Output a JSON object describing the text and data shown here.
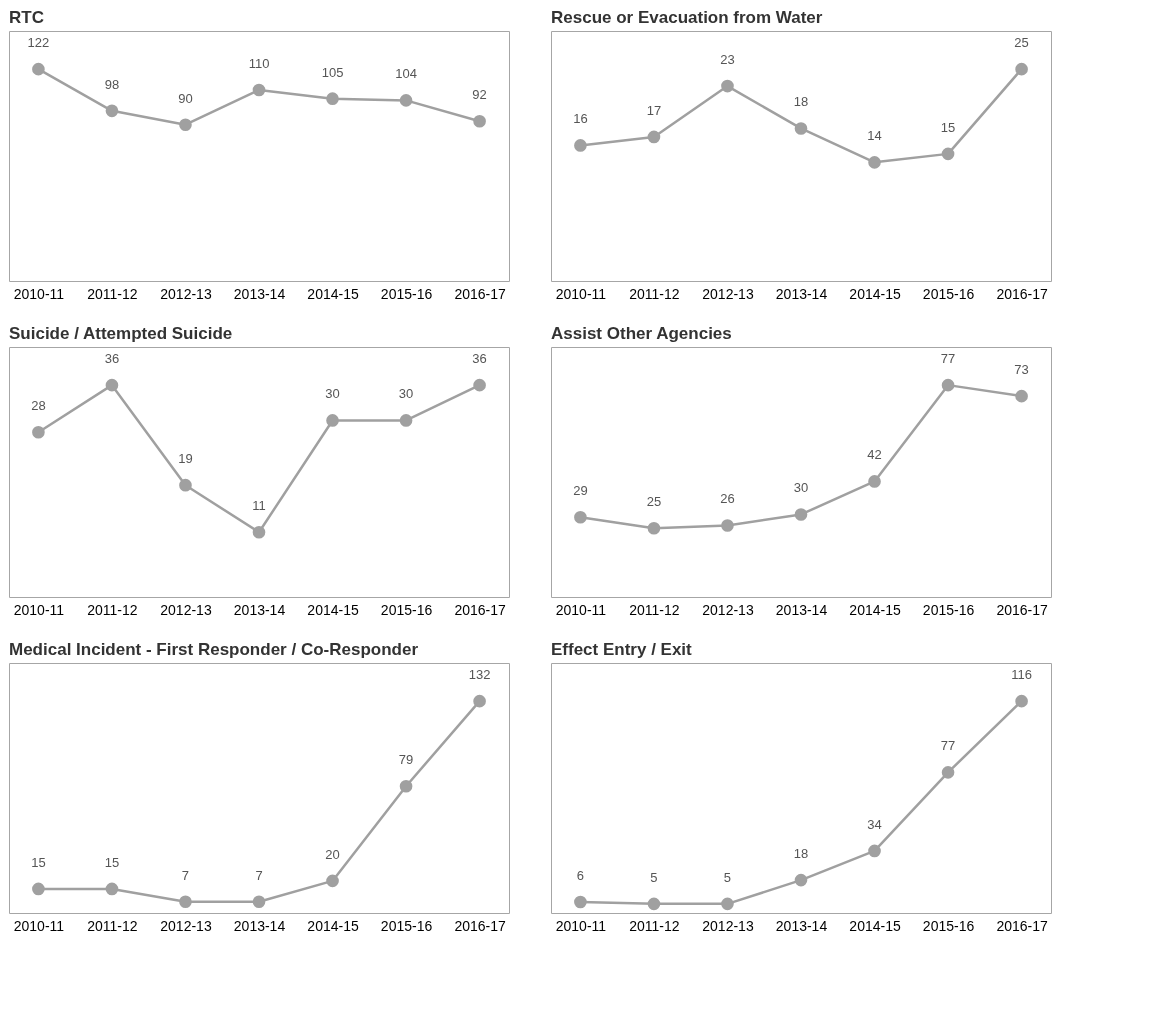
{
  "chart_data": [
    {
      "type": "line",
      "title": "RTC",
      "categories": [
        "2010-11",
        "2011-12",
        "2012-13",
        "2013-14",
        "2014-15",
        "2015-16",
        "2016-17"
      ],
      "values": [
        122,
        98,
        90,
        110,
        105,
        104,
        92
      ],
      "color": "#a0a0a0",
      "marker": "circle",
      "data_labels": true,
      "grid": false
    },
    {
      "type": "line",
      "title": "Rescue or Evacuation from Water",
      "categories": [
        "2010-11",
        "2011-12",
        "2012-13",
        "2013-14",
        "2014-15",
        "2015-16",
        "2016-17"
      ],
      "values": [
        16,
        17,
        23,
        18,
        14,
        15,
        25
      ],
      "color": "#a0a0a0",
      "marker": "circle",
      "data_labels": true,
      "grid": false
    },
    {
      "type": "line",
      "title": "Suicide / Attempted Suicide",
      "categories": [
        "2010-11",
        "2011-12",
        "2012-13",
        "2013-14",
        "2014-15",
        "2015-16",
        "2016-17"
      ],
      "values": [
        28,
        36,
        19,
        11,
        30,
        30,
        36
      ],
      "color": "#a0a0a0",
      "marker": "circle",
      "data_labels": true,
      "grid": false
    },
    {
      "type": "line",
      "title": "Assist Other Agencies",
      "categories": [
        "2010-11",
        "2011-12",
        "2012-13",
        "2013-14",
        "2014-15",
        "2015-16",
        "2016-17"
      ],
      "values": [
        29,
        25,
        26,
        30,
        42,
        77,
        73
      ],
      "color": "#a0a0a0",
      "marker": "circle",
      "data_labels": true,
      "grid": false
    },
    {
      "type": "line",
      "title": "Medical Incident - First  Responder / Co-Responder",
      "categories": [
        "2010-11",
        "2011-12",
        "2012-13",
        "2013-14",
        "2014-15",
        "2015-16",
        "2016-17"
      ],
      "values": [
        15,
        15,
        7,
        7,
        20,
        79,
        132
      ],
      "color": "#a0a0a0",
      "marker": "circle",
      "data_labels": true,
      "grid": false
    },
    {
      "type": "line",
      "title": "Effect Entry / Exit",
      "categories": [
        "2010-11",
        "2011-12",
        "2012-13",
        "2013-14",
        "2014-15",
        "2015-16",
        "2016-17"
      ],
      "values": [
        6,
        5,
        5,
        18,
        34,
        77,
        116
      ],
      "color": "#a0a0a0",
      "marker": "circle",
      "data_labels": true,
      "grid": false
    }
  ]
}
